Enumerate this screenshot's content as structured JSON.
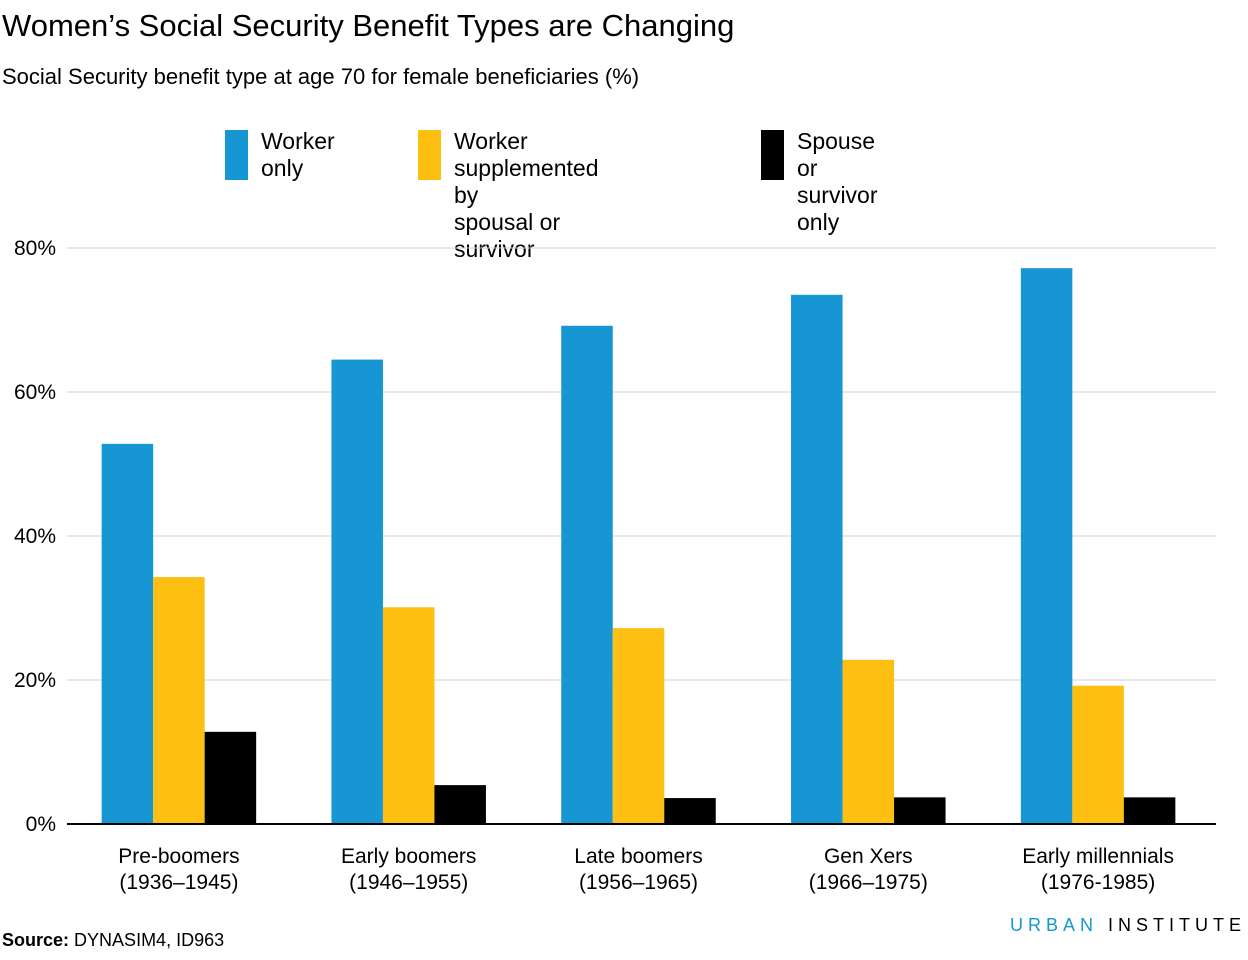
{
  "title": "Women’s Social Security Benefit Types are Changing",
  "subtitle": "Social Security benefit type at age 70 for female beneficiaries (%)",
  "source_label": "Source:",
  "source_text": "DYNASIM4, ID963",
  "brand": {
    "part1": "URBAN",
    "part2": "INSTITUTE"
  },
  "chart_data": {
    "type": "bar",
    "title": "Women’s Social Security Benefit Types are Changing",
    "subtitle": "Social Security benefit type at age 70 for female beneficiaries (%)",
    "categories": [
      [
        "Pre-boomers",
        "(1936–1945)"
      ],
      [
        "Early boomers",
        "(1946–1955)"
      ],
      [
        "Late boomers",
        "(1956–1965)"
      ],
      [
        "Gen Xers",
        "(1966–1975)"
      ],
      [
        "Early millennials",
        "(1976-1985)"
      ]
    ],
    "series": [
      {
        "name": "Worker only",
        "color": "#1696d2",
        "values": [
          52.8,
          64.5,
          69.2,
          73.5,
          77.2
        ]
      },
      {
        "name": "Worker supplemented by\nspousal or survivor",
        "color": "#fdbf11",
        "values": [
          34.3,
          30.1,
          27.2,
          22.8,
          19.2
        ]
      },
      {
        "name": "Spouse or survivor only",
        "color": "#000000",
        "values": [
          12.8,
          5.4,
          3.6,
          3.7,
          3.7
        ]
      }
    ],
    "ylim": [
      0,
      80
    ],
    "yticks": [
      0,
      20,
      40,
      60,
      80
    ],
    "ytick_labels": [
      "0%",
      "20%",
      "40%",
      "60%",
      "80%"
    ],
    "xlabel": "",
    "ylabel": "",
    "grid": true,
    "legend_position": "top"
  }
}
